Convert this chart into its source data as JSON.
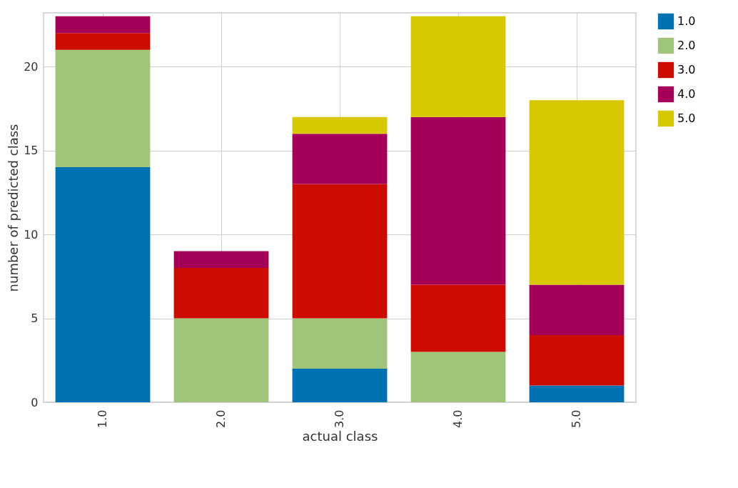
{
  "chart_data": {
    "type": "bar",
    "stacked": true,
    "xlabel": "actual class",
    "ylabel": "number of predicted class",
    "categories": [
      "1.0",
      "2.0",
      "3.0",
      "4.0",
      "5.0"
    ],
    "series": [
      {
        "name": "1.0",
        "color": "#0072b2",
        "values": [
          14,
          0,
          2,
          0,
          1
        ]
      },
      {
        "name": "2.0",
        "color": "#9fc47a",
        "values": [
          7,
          5,
          3,
          3,
          0
        ]
      },
      {
        "name": "3.0",
        "color": "#cc0c00",
        "values": [
          1,
          3,
          8,
          4,
          3
        ]
      },
      {
        "name": "4.0",
        "color": "#a50058",
        "values": [
          1,
          1,
          3,
          10,
          3
        ]
      },
      {
        "name": "5.0",
        "color": "#d8c800",
        "values": [
          0,
          0,
          1,
          6,
          11
        ]
      }
    ],
    "ylim": [
      0,
      23.2
    ],
    "yticks": [
      0,
      5,
      10,
      15,
      20
    ],
    "grid": true,
    "legend": "right"
  }
}
